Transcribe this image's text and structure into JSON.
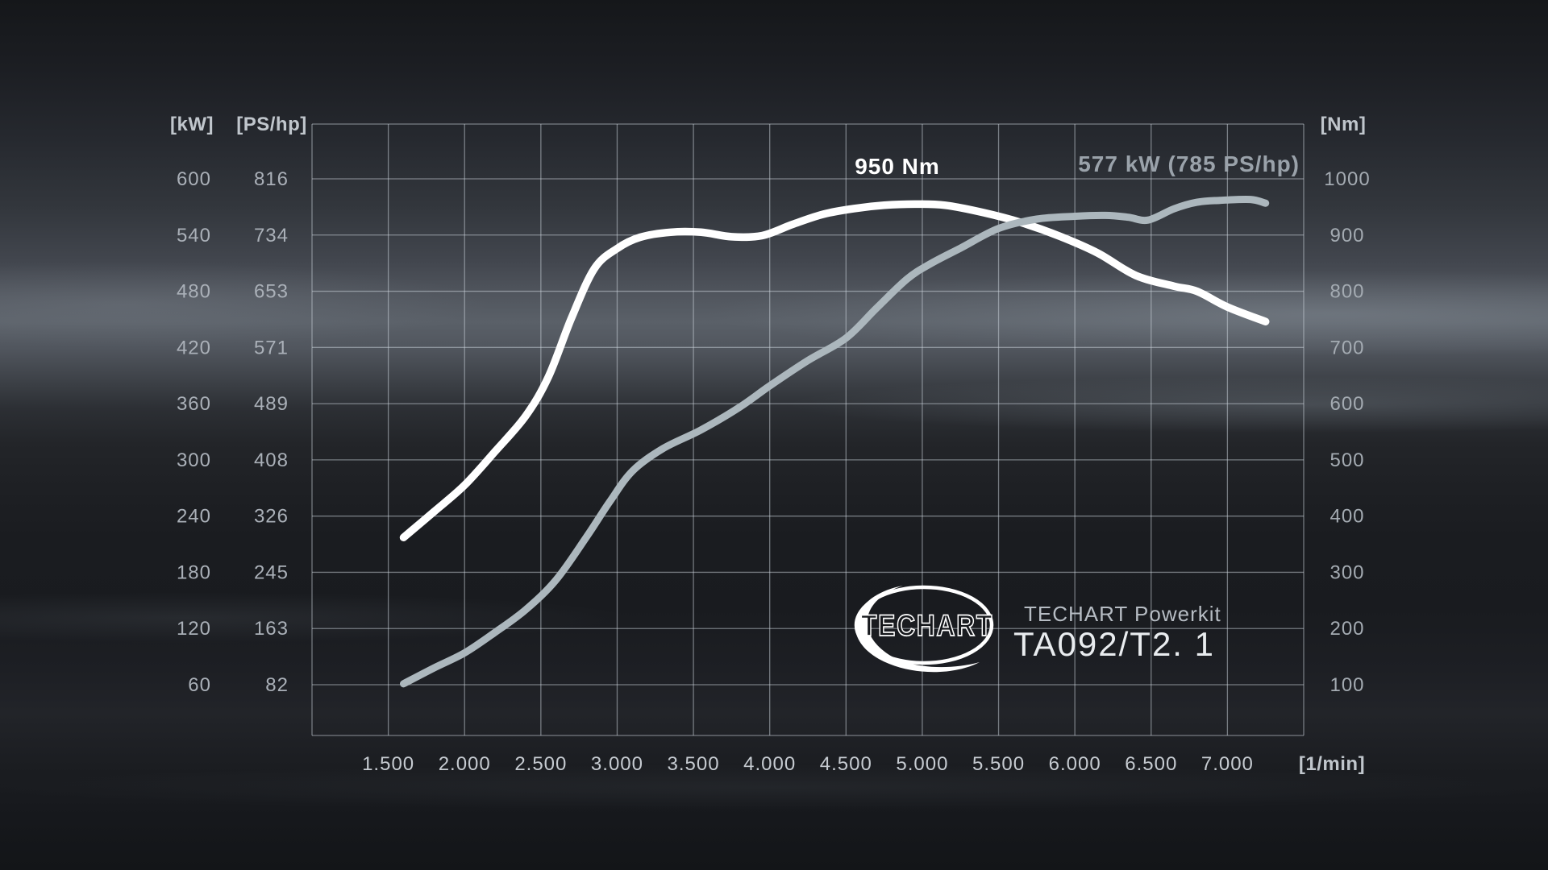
{
  "accent_colors": {
    "torque_curve": "#ffffff",
    "power_curve": "#acb7bd",
    "grid": "rgba(205,214,222,0.50)",
    "background_dark": "#17191d"
  },
  "chart_data": {
    "type": "line",
    "x_axis": {
      "unit_label": "[1/min]",
      "tick_labels": [
        "1.500",
        "2.000",
        "2.500",
        "3.000",
        "3.500",
        "4.000",
        "4.500",
        "5.000",
        "5.500",
        "6.000",
        "6.500",
        "7.000"
      ],
      "tick_values": [
        1500,
        2000,
        2500,
        3000,
        3500,
        4000,
        4500,
        5000,
        5500,
        6000,
        6500,
        7000
      ],
      "range": [
        1000,
        7500
      ],
      "gridline_step": 500
    },
    "y_left": {
      "headers": [
        "[kW]",
        "[PS/hp]"
      ],
      "kw_ticks": [
        600,
        540,
        480,
        420,
        360,
        300,
        240,
        180,
        120,
        60
      ],
      "ps_ticks": [
        816,
        734,
        653,
        571,
        489,
        408,
        326,
        245,
        163,
        82
      ],
      "kw_per_division": 60
    },
    "y_right": {
      "header": "[Nm]",
      "ticks": [
        1000,
        900,
        800,
        700,
        600,
        500,
        400,
        300,
        200,
        100
      ],
      "nm_per_division": 100
    },
    "annotations": {
      "torque_peak": "950 Nm",
      "power_peak": "577 kW (785 PS/hp)"
    },
    "series": [
      {
        "name": "torque",
        "unit": "Nm",
        "axis": "right",
        "color": "#ffffff",
        "width": 9.5,
        "points": [
          [
            1600,
            362
          ],
          [
            1800,
            408
          ],
          [
            2000,
            455
          ],
          [
            2200,
            515
          ],
          [
            2400,
            578
          ],
          [
            2550,
            648
          ],
          [
            2700,
            752
          ],
          [
            2850,
            840
          ],
          [
            3000,
            876
          ],
          [
            3150,
            896
          ],
          [
            3350,
            905
          ],
          [
            3550,
            905
          ],
          [
            3750,
            897
          ],
          [
            3950,
            899
          ],
          [
            4150,
            919
          ],
          [
            4350,
            937
          ],
          [
            4550,
            947
          ],
          [
            4750,
            953
          ],
          [
            4950,
            955
          ],
          [
            5150,
            953
          ],
          [
            5400,
            940
          ],
          [
            5650,
            922
          ],
          [
            5900,
            898
          ],
          [
            6150,
            868
          ],
          [
            6400,
            828
          ],
          [
            6650,
            809
          ],
          [
            6800,
            800
          ],
          [
            7000,
            772
          ],
          [
            7250,
            746
          ]
        ]
      },
      {
        "name": "power",
        "unit": "kW",
        "axis": "left",
        "color": "#acb7bd",
        "width": 9,
        "points": [
          [
            1600,
            61
          ],
          [
            1800,
            78
          ],
          [
            2000,
            94
          ],
          [
            2200,
            116
          ],
          [
            2400,
            140
          ],
          [
            2600,
            172
          ],
          [
            2800,
            218
          ],
          [
            2950,
            255
          ],
          [
            3100,
            288
          ],
          [
            3300,
            312
          ],
          [
            3550,
            332
          ],
          [
            3800,
            356
          ],
          [
            4000,
            379
          ],
          [
            4250,
            406
          ],
          [
            4500,
            430
          ],
          [
            4700,
            462
          ],
          [
            4900,
            493
          ],
          [
            5050,
            509
          ],
          [
            5250,
            526
          ],
          [
            5500,
            547
          ],
          [
            5750,
            557
          ],
          [
            6000,
            560
          ],
          [
            6200,
            561
          ],
          [
            6350,
            559
          ],
          [
            6480,
            556
          ],
          [
            6650,
            568
          ],
          [
            6800,
            575
          ],
          [
            6950,
            577
          ],
          [
            7150,
            578
          ],
          [
            7250,
            574
          ]
        ]
      }
    ]
  },
  "branding": {
    "logo_text": "TECHART",
    "line1": "TECHART Powerkit",
    "line2": "TA092/T2. 1"
  }
}
